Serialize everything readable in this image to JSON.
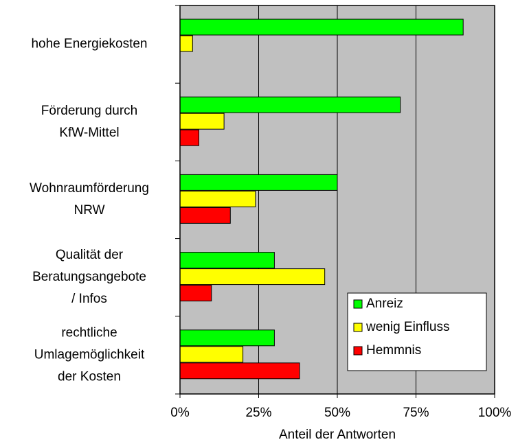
{
  "chart_data": {
    "type": "bar",
    "orientation": "horizontal",
    "x_label": "Anteil der Antworten",
    "categories": [
      [
        "hohe Energiekosten"
      ],
      [
        "Förderung durch",
        "KfW-Mittel"
      ],
      [
        "Wohnraumförderung",
        "NRW"
      ],
      [
        "Qualität der",
        "Beratungsangebote",
        "/ Infos"
      ],
      [
        "rechtliche",
        "Umlagemöglichkeit",
        "der Kosten"
      ]
    ],
    "series": [
      {
        "name": "Anreiz",
        "color": "#00ff00",
        "values": [
          90,
          70,
          50,
          30,
          30
        ]
      },
      {
        "name": "wenig Einfluss",
        "color": "#ffff00",
        "values": [
          4,
          14,
          24,
          46,
          20
        ]
      },
      {
        "name": "Hemmnis",
        "color": "#ff0000",
        "values": [
          0,
          6,
          16,
          10,
          38
        ]
      }
    ],
    "xlim": [
      0,
      100
    ],
    "xticks": [
      {
        "value": 0,
        "label": "0%"
      },
      {
        "value": 25,
        "label": "25%"
      },
      {
        "value": 50,
        "label": "50%"
      },
      {
        "value": 75,
        "label": "75%"
      },
      {
        "value": 100,
        "label": "100%"
      }
    ],
    "grid": true,
    "legend": "lower right",
    "background": "#c0c0c0"
  }
}
